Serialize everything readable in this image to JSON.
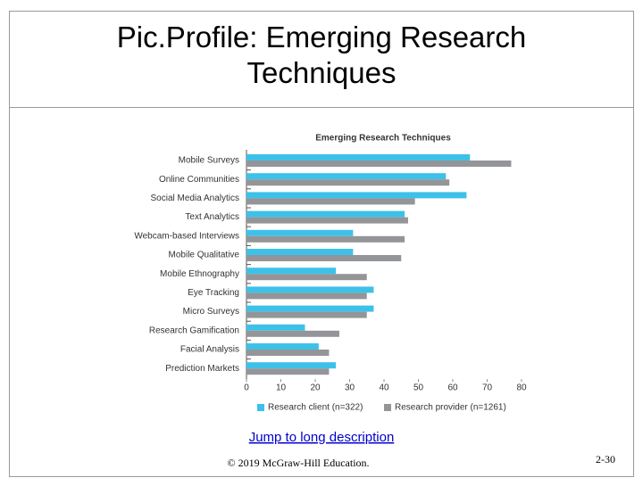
{
  "slide_title": "Pic.Profile: Emerging Research Techniques",
  "chart_data": {
    "type": "hbar",
    "title": "Emerging Research Techniques",
    "categories": [
      "Mobile Surveys",
      "Online Communities",
      "Social Media Analytics",
      "Text Analytics",
      "Webcam-based Interviews",
      "Mobile Qualitative",
      "Mobile Ethnography",
      "Eye Tracking",
      "Micro Surveys",
      "Research Gamification",
      "Facial Analysis",
      "Prediction Markets"
    ],
    "series": [
      {
        "name": "Research client (n=322)",
        "color": "#3ec1e8",
        "values": [
          65,
          58,
          64,
          46,
          31,
          31,
          26,
          37,
          37,
          17,
          21,
          26
        ]
      },
      {
        "name": "Research provider (n=1261)",
        "color": "#939598",
        "values": [
          77,
          59,
          49,
          47,
          46,
          45,
          35,
          35,
          35,
          27,
          24,
          24
        ]
      }
    ],
    "xlim": [
      0,
      80
    ],
    "xticks": [
      0,
      10,
      20,
      30,
      40,
      50,
      60,
      70,
      80
    ],
    "grid": false,
    "legend": "bottom"
  },
  "link": "Jump to long description",
  "footer": {
    "copyright": "© 2019 McGraw-Hill Education.",
    "page": "2-30"
  }
}
